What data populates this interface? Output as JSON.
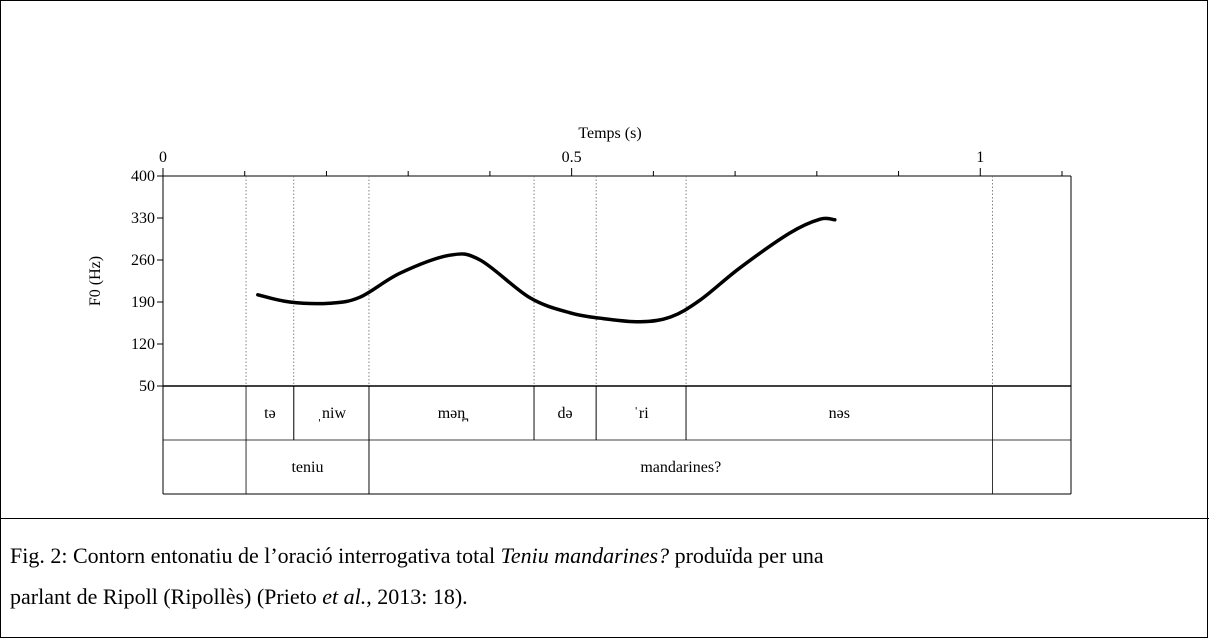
{
  "chart_data": {
    "type": "line",
    "x_title": "Temps (s)",
    "y_title": "F0 (Hz)",
    "xlim": [
      0,
      1.111
    ],
    "ylim": [
      50,
      400
    ],
    "xticks": [
      0,
      0.5,
      1
    ],
    "xminorticks": [
      0.1,
      0.2,
      0.3,
      0.4,
      0.6,
      0.7,
      0.8,
      0.9,
      1.1
    ],
    "yticks": [
      50,
      120,
      190,
      260,
      330,
      400
    ],
    "color": "#000000",
    "x": [
      0.116,
      0.155,
      0.204,
      0.241,
      0.29,
      0.351,
      0.388,
      0.449,
      0.498,
      0.535,
      0.584,
      0.621,
      0.657,
      0.706,
      0.767,
      0.804,
      0.822
    ],
    "values": [
      202,
      190,
      188,
      198,
      238,
      268,
      260,
      197,
      172,
      163,
      157,
      165,
      193,
      247,
      305,
      328,
      327
    ],
    "tiers": [
      {
        "intervals": [
          {
            "start": 0.1016,
            "end": 0.16,
            "label": "tə"
          },
          {
            "start": 0.16,
            "end": 0.252,
            "label": "ˌniw"
          },
          {
            "start": 0.252,
            "end": 0.454,
            "label": "mən̪"
          },
          {
            "start": 0.454,
            "end": 0.53,
            "label": "də"
          },
          {
            "start": 0.53,
            "end": 0.64,
            "label": "ˈri"
          },
          {
            "start": 0.64,
            "end": 1.015,
            "label": "nəs"
          }
        ]
      },
      {
        "intervals": [
          {
            "start": 0.1016,
            "end": 0.252,
            "label": "teniu"
          },
          {
            "start": 0.252,
            "end": 1.015,
            "label": "mandarines?"
          }
        ]
      }
    ]
  },
  "caption": {
    "lines": [
      [
        {
          "text": "Fig. 2: Contorn entonatiu de l’oració interrogativa total ",
          "italic": false
        },
        {
          "text": "Teniu mandarines?",
          "italic": true
        },
        {
          "text": " produïda per una",
          "italic": false
        }
      ],
      [
        {
          "text": "parlant de Ripoll (Ripollès) (Prieto ",
          "italic": false
        },
        {
          "text": "et al.",
          "italic": true
        },
        {
          "text": ", 2013: 18).",
          "italic": false
        }
      ]
    ]
  }
}
